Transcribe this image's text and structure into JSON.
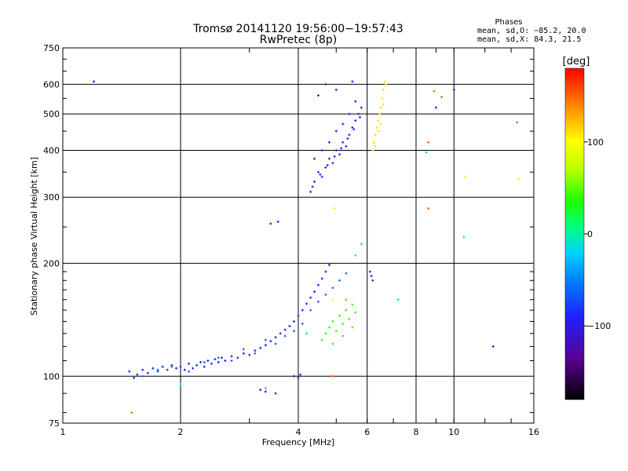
{
  "chart_data": {
    "type": "scatter",
    "title": "Tromsø 20141120 19:56:00−19:57:43",
    "subtitle": "RwPretec (8p)",
    "xlabel": "Frequency [MHz]",
    "ylabel": "Stationary phase Virtual Height [km]",
    "x_scale": "log",
    "y_scale": "log",
    "xlim": [
      1,
      16
    ],
    "ylim": [
      75,
      750
    ],
    "x_ticks": [
      1,
      2,
      4,
      6,
      8,
      10,
      16
    ],
    "x_tick_labels": [
      "1",
      "2",
      "4",
      "6",
      "8",
      "10",
      "16"
    ],
    "y_ticks": [
      75,
      100,
      200,
      300,
      400,
      500,
      600,
      750
    ],
    "y_tick_labels": [
      "75",
      "100",
      "200",
      "300",
      "400",
      "500",
      "600",
      "750"
    ],
    "grid": true,
    "phase_info": {
      "title": "Phases",
      "line1": "mean, sd,O: −85.2, 20.0",
      "line2": "mean, sd,X:  84.3, 21.5"
    },
    "colorbar": {
      "label": "[deg]",
      "range": [
        -180,
        180
      ],
      "ticks": [
        100,
        0,
        -100
      ],
      "tick_labels": [
        "100",
        "0",
        "−100"
      ]
    },
    "clusters": [
      {
        "phase": -90,
        "points": [
          [
            1.48,
            103
          ],
          [
            1.52,
            99
          ],
          [
            1.55,
            101
          ],
          [
            1.6,
            104
          ],
          [
            1.65,
            102
          ],
          [
            1.7,
            105
          ],
          [
            1.75,
            103
          ],
          [
            1.8,
            106
          ],
          [
            1.85,
            104
          ],
          [
            1.9,
            107
          ],
          [
            1.95,
            105
          ],
          [
            2.0,
            106
          ],
          [
            2.05,
            104
          ],
          [
            2.1,
            108
          ],
          [
            2.15,
            105
          ],
          [
            2.2,
            107
          ],
          [
            2.25,
            109
          ],
          [
            2.3,
            106
          ],
          [
            2.35,
            110
          ],
          [
            2.4,
            108
          ],
          [
            2.45,
            111
          ],
          [
            2.5,
            109
          ],
          [
            2.55,
            112
          ],
          [
            2.6,
            110
          ],
          [
            2.7,
            113
          ],
          [
            2.8,
            112
          ],
          [
            2.9,
            115
          ],
          [
            3.0,
            114
          ],
          [
            3.1,
            117
          ],
          [
            3.2,
            119
          ],
          [
            3.3,
            121
          ],
          [
            3.4,
            124
          ],
          [
            3.5,
            127
          ],
          [
            3.6,
            130
          ],
          [
            3.7,
            133
          ],
          [
            3.8,
            136
          ],
          [
            3.9,
            140
          ],
          [
            4.0,
            145
          ],
          [
            4.1,
            150
          ],
          [
            4.2,
            156
          ],
          [
            4.3,
            162
          ],
          [
            4.4,
            168
          ],
          [
            4.5,
            175
          ],
          [
            4.6,
            182
          ],
          [
            4.7,
            190
          ],
          [
            4.8,
            198
          ]
        ]
      },
      {
        "phase": -60,
        "points": [
          [
            1.6,
            100
          ],
          [
            1.75,
            104
          ],
          [
            1.9,
            106
          ],
          [
            2.1,
            103
          ],
          [
            2.3,
            109
          ],
          [
            2.5,
            112
          ],
          [
            2.7,
            110
          ],
          [
            2.9,
            118
          ],
          [
            3.1,
            115
          ],
          [
            3.3,
            125
          ],
          [
            3.5,
            122
          ],
          [
            3.7,
            128
          ],
          [
            3.9,
            132
          ],
          [
            4.1,
            138
          ],
          [
            4.3,
            150
          ],
          [
            4.5,
            158
          ],
          [
            4.7,
            165
          ],
          [
            4.9,
            172
          ],
          [
            5.1,
            180
          ],
          [
            5.3,
            188
          ]
        ]
      },
      {
        "phase": 40,
        "points": [
          [
            4.6,
            125
          ],
          [
            4.7,
            130
          ],
          [
            4.8,
            135
          ],
          [
            4.9,
            140
          ],
          [
            5.0,
            132
          ],
          [
            5.1,
            145
          ],
          [
            5.2,
            138
          ],
          [
            5.3,
            150
          ],
          [
            5.4,
            142
          ],
          [
            5.5,
            155
          ],
          [
            5.6,
            148
          ],
          [
            5.2,
            128
          ],
          [
            4.9,
            122
          ],
          [
            5.3,
            160
          ],
          [
            5.5,
            135
          ]
        ]
      },
      {
        "phase": -95,
        "points": [
          [
            4.3,
            310
          ],
          [
            4.4,
            330
          ],
          [
            4.5,
            350
          ],
          [
            4.6,
            340
          ],
          [
            4.7,
            360
          ],
          [
            4.8,
            380
          ],
          [
            4.9,
            370
          ],
          [
            5.0,
            400
          ],
          [
            5.1,
            390
          ],
          [
            5.2,
            420
          ],
          [
            5.3,
            410
          ],
          [
            5.4,
            440
          ],
          [
            5.5,
            460
          ],
          [
            5.6,
            480
          ],
          [
            5.7,
            500
          ],
          [
            5.8,
            520
          ],
          [
            4.4,
            380
          ],
          [
            4.6,
            400
          ],
          [
            4.8,
            420
          ],
          [
            5.0,
            450
          ],
          [
            5.2,
            470
          ],
          [
            5.4,
            500
          ],
          [
            5.6,
            540
          ],
          [
            4.5,
            560
          ],
          [
            4.7,
            600
          ],
          [
            5.0,
            580
          ],
          [
            5.5,
            610
          ],
          [
            4.35,
            320
          ],
          [
            4.55,
            345
          ],
          [
            4.75,
            365
          ],
          [
            4.95,
            385
          ],
          [
            5.15,
            405
          ],
          [
            5.35,
            430
          ],
          [
            5.55,
            455
          ],
          [
            5.75,
            490
          ]
        ]
      },
      {
        "phase": 110,
        "points": [
          [
            6.2,
            400
          ],
          [
            6.25,
            420
          ],
          [
            6.3,
            440
          ],
          [
            6.35,
            460
          ],
          [
            6.4,
            480
          ],
          [
            6.45,
            500
          ],
          [
            6.5,
            520
          ],
          [
            6.55,
            550
          ],
          [
            6.6,
            580
          ],
          [
            6.65,
            610
          ],
          [
            6.3,
            410
          ],
          [
            6.4,
            450
          ],
          [
            6.5,
            470
          ],
          [
            6.6,
            530
          ],
          [
            6.7,
            600
          ]
        ]
      },
      {
        "phase": -105,
        "points": [
          [
            6.1,
            190
          ],
          [
            6.15,
            185
          ],
          [
            6.2,
            180
          ],
          [
            3.4,
            255
          ],
          [
            3.55,
            258
          ],
          [
            3.2,
            92
          ],
          [
            3.3,
            91
          ],
          [
            3.5,
            90
          ],
          [
            3.9,
            100
          ],
          [
            4.0,
            99
          ],
          [
            4.05,
            101
          ],
          [
            1.2,
            610
          ],
          [
            9.0,
            520
          ],
          [
            10.0,
            580
          ],
          [
            12.6,
            120
          ]
        ]
      },
      {
        "phase": -20,
        "points": [
          [
            2.0,
            95
          ],
          [
            3.3,
            93
          ],
          [
            4.2,
            130
          ],
          [
            5.8,
            225
          ],
          [
            7.2,
            160
          ],
          [
            8.5,
            395
          ],
          [
            5.6,
            210
          ]
        ]
      },
      {
        "phase": 150,
        "points": [
          [
            1.5,
            80
          ],
          [
            4.9,
            100
          ],
          [
            8.6,
            280
          ],
          [
            8.9,
            575
          ],
          [
            9.3,
            555
          ],
          [
            14.5,
            475
          ],
          [
            8.6,
            420
          ]
        ]
      },
      {
        "phase": 90,
        "points": [
          [
            4.9,
            160
          ],
          [
            10.7,
            340
          ],
          [
            14.6,
            335
          ],
          [
            4.95,
            280
          ]
        ]
      },
      {
        "phase": 10,
        "points": [
          [
            10.6,
            235
          ]
        ]
      }
    ]
  }
}
